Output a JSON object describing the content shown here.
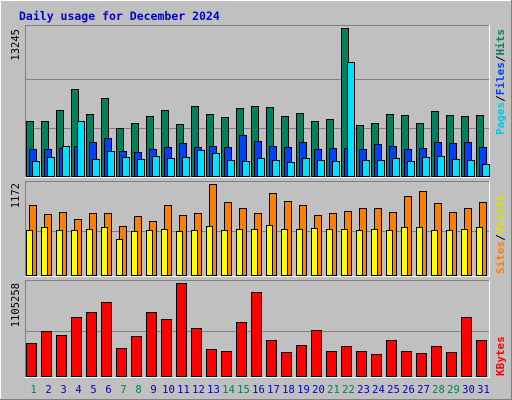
{
  "title": "Daily usage for December 2024",
  "colors": {
    "background": "#C0C0C0",
    "plot_background": "#C0C0C0",
    "title": "#0000FF",
    "hits": "#00805C",
    "files": "#0040FF",
    "pages": "#00E0FF",
    "visits": "#FFFF00",
    "sites": "#FF8000",
    "kbytes": "#FF0000",
    "weekend_day": "#00805C",
    "weekday": "#0000FF"
  },
  "panels": {
    "top": {
      "ymax_label": "13245",
      "legend": [
        "Pages",
        "/",
        "Files",
        "/",
        "Hits"
      ]
    },
    "middle": {
      "ymax_label": "1172",
      "legend": [
        "Sites",
        "/",
        "Visits"
      ]
    },
    "bottom": {
      "ymax_label": "1105258",
      "legend": [
        "KBytes"
      ]
    }
  },
  "chart_data": [
    {
      "type": "bar",
      "panel": "top",
      "categories": [
        "1",
        "2",
        "3",
        "4",
        "5",
        "6",
        "7",
        "8",
        "9",
        "10",
        "11",
        "12",
        "13",
        "14",
        "15",
        "16",
        "17",
        "18",
        "19",
        "20",
        "21",
        "22",
        "23",
        "24",
        "25",
        "26",
        "27",
        "28",
        "29",
        "30",
        "31"
      ],
      "ylim": [
        0,
        13245
      ],
      "series": [
        {
          "name": "Hits",
          "values": [
            5000,
            5000,
            6000,
            7800,
            5600,
            7000,
            4400,
            4800,
            5400,
            6000,
            4700,
            6300,
            5600,
            5300,
            6100,
            6300,
            6200,
            5400,
            5700,
            5000,
            5200,
            13245,
            4600,
            4800,
            5600,
            5500,
            4800,
            5900,
            5500,
            5400,
            5500
          ]
        },
        {
          "name": "Files",
          "values": [
            2500,
            2500,
            2600,
            2800,
            3100,
            3500,
            2300,
            2200,
            2500,
            2700,
            3000,
            2700,
            2800,
            2700,
            3700,
            3200,
            2800,
            2700,
            3100,
            2500,
            2600,
            2600,
            2500,
            2900,
            2800,
            2500,
            2600,
            3100,
            3000,
            3100,
            2700
          ]
        },
        {
          "name": "Pages",
          "values": [
            1400,
            1800,
            2800,
            5000,
            1600,
            2300,
            1800,
            1600,
            1900,
            1700,
            1800,
            2400,
            2100,
            1500,
            1400,
            1700,
            1500,
            1300,
            1700,
            1500,
            1400,
            10200,
            1500,
            1500,
            1700,
            1400,
            1800,
            1900,
            1600,
            1500,
            1200
          ]
        }
      ]
    },
    {
      "type": "bar",
      "panel": "middle",
      "categories": [
        "1",
        "2",
        "3",
        "4",
        "5",
        "6",
        "7",
        "8",
        "9",
        "10",
        "11",
        "12",
        "13",
        "14",
        "15",
        "16",
        "17",
        "18",
        "19",
        "20",
        "21",
        "22",
        "23",
        "24",
        "25",
        "26",
        "27",
        "28",
        "29",
        "30",
        "31"
      ],
      "ylim": [
        0,
        1172
      ],
      "series": [
        {
          "name": "Sites",
          "values": [
            900,
            790,
            820,
            730,
            800,
            800,
            640,
            760,
            700,
            900,
            780,
            800,
            1172,
            940,
            870,
            800,
            1060,
            960,
            910,
            780,
            800,
            830,
            870,
            860,
            820,
            1020,
            1080,
            930,
            820,
            870,
            940
          ]
        },
        {
          "name": "Visits",
          "values": [
            580,
            620,
            590,
            580,
            600,
            620,
            470,
            570,
            580,
            600,
            570,
            590,
            640,
            590,
            600,
            600,
            650,
            600,
            600,
            610,
            600,
            600,
            590,
            600,
            590,
            620,
            630,
            590,
            580,
            600,
            620
          ]
        }
      ]
    },
    {
      "type": "bar",
      "panel": "bottom",
      "categories": [
        "1",
        "2",
        "3",
        "4",
        "5",
        "6",
        "7",
        "8",
        "9",
        "10",
        "11",
        "12",
        "13",
        "14",
        "15",
        "16",
        "17",
        "18",
        "19",
        "20",
        "21",
        "22",
        "23",
        "24",
        "25",
        "26",
        "27",
        "28",
        "29",
        "30",
        "31"
      ],
      "ylim": [
        0,
        1105258
      ],
      "series": [
        {
          "name": "KBytes",
          "values": [
            400000,
            540000,
            490000,
            710000,
            770000,
            880000,
            340000,
            480000,
            760000,
            680000,
            1105258,
            580000,
            330000,
            310000,
            650000,
            1000000,
            430000,
            290000,
            380000,
            550000,
            310000,
            360000,
            300000,
            270000,
            430000,
            310000,
            280000,
            360000,
            290000,
            710000,
            430000
          ]
        }
      ]
    }
  ],
  "xaxis": {
    "days": [
      "1",
      "2",
      "3",
      "4",
      "5",
      "6",
      "7",
      "8",
      "9",
      "10",
      "11",
      "12",
      "13",
      "14",
      "15",
      "16",
      "17",
      "18",
      "19",
      "20",
      "21",
      "22",
      "23",
      "24",
      "25",
      "26",
      "27",
      "28",
      "29",
      "30",
      "31"
    ],
    "weekend": [
      "1",
      "7",
      "8",
      "14",
      "15",
      "21",
      "22",
      "28",
      "29"
    ]
  }
}
